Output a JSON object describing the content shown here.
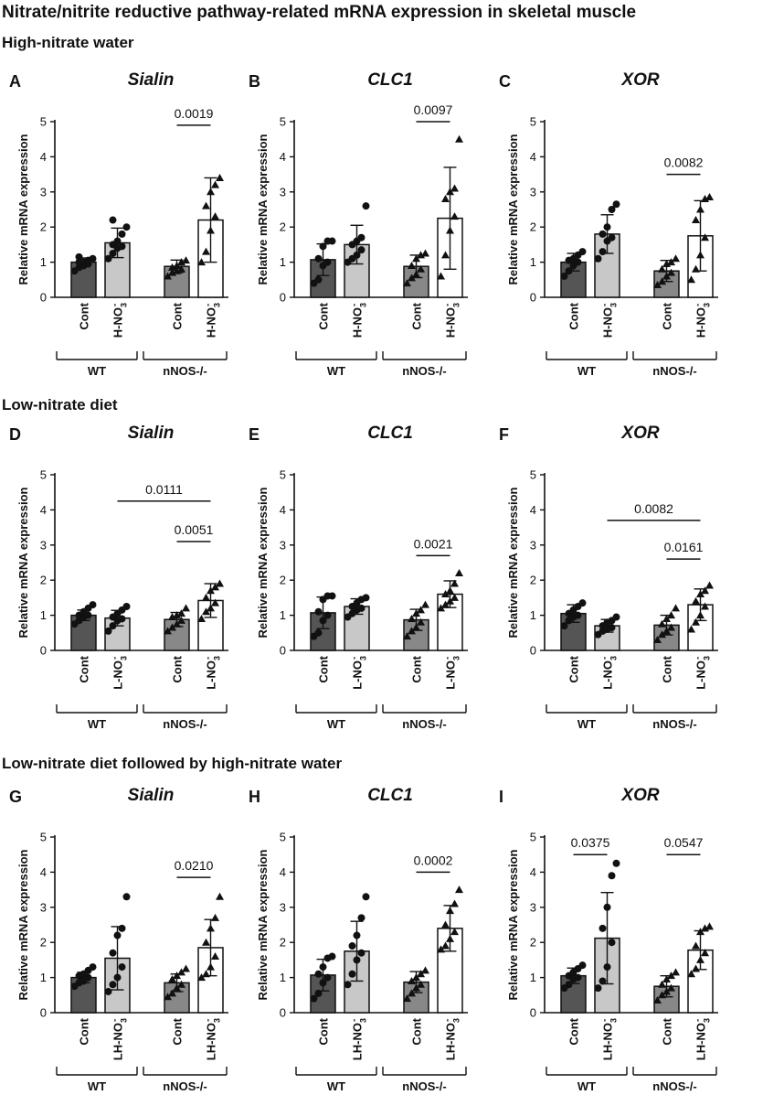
{
  "figure_title": "Nitrate/nitrite reductive pathway-related mRNA expression in skeletal muscle",
  "sections": [
    "High-nitrate water",
    "Low-nitrate diet",
    "Low-nitrate diet followed by high-nitrate water"
  ],
  "colors": {
    "cont": "#555555",
    "treat": "#c8c8c8",
    "ko_cont": "#888888",
    "ko_treat": "#ffffff",
    "ink": "#111111"
  },
  "chart_data": [
    {
      "type": "bar",
      "panel": "A",
      "gene": "Sialin",
      "section": 0,
      "ylabel": "Relative mRNA expression",
      "ylim": [
        0,
        5
      ],
      "yticks": [
        "0",
        "1",
        "2",
        "3",
        "4",
        "5"
      ],
      "categories": [
        "Cont",
        "H-NO3-"
      ],
      "cat_display": [
        {
          "main": "Cont"
        },
        {
          "main": "H-NO",
          "sub": "3",
          "sup": "-"
        }
      ],
      "groups": [
        "WT",
        "nNOS-/-"
      ],
      "series": [
        {
          "name": "WT Cont",
          "mean": 1.0,
          "sd": 0.12,
          "marker": "circle",
          "points": [
            0.75,
            0.85,
            0.9,
            0.95,
            1.0,
            1.0,
            1.05,
            1.1,
            1.15
          ]
        },
        {
          "name": "WT H-NO3-",
          "mean": 1.55,
          "sd": 0.42,
          "marker": "circle",
          "points": [
            1.1,
            1.25,
            1.4,
            1.45,
            1.5,
            1.6,
            1.8,
            2.0,
            2.2
          ]
        },
        {
          "name": "nNOS-/- Cont",
          "mean": 0.88,
          "sd": 0.18,
          "marker": "triangle",
          "points": [
            0.6,
            0.7,
            0.75,
            0.8,
            0.85,
            0.9,
            1.0,
            1.05
          ]
        },
        {
          "name": "nNOS-/- H-NO3-",
          "mean": 2.2,
          "sd": 1.2,
          "marker": "triangle",
          "points": [
            1.0,
            1.3,
            1.9,
            2.3,
            2.6,
            3.0,
            3.2,
            3.4
          ]
        }
      ],
      "comparisons": [
        {
          "from": 2,
          "to": 3,
          "label": "0.0019",
          "y": 4.9
        }
      ]
    },
    {
      "type": "bar",
      "panel": "B",
      "gene": "CLC1",
      "section": 0,
      "ylabel": "Relative mRNA expression",
      "ylim": [
        0,
        5
      ],
      "yticks": [
        "0",
        "1",
        "2",
        "3",
        "4",
        "5"
      ],
      "categories": [
        "Cont",
        "H-NO3-"
      ],
      "cat_display": [
        {
          "main": "Cont"
        },
        {
          "main": "H-NO",
          "sub": "3",
          "sup": "-"
        }
      ],
      "groups": [
        "WT",
        "nNOS-/-"
      ],
      "series": [
        {
          "name": "WT Cont",
          "mean": 1.07,
          "sd": 0.45,
          "marker": "circle",
          "points": [
            0.4,
            0.5,
            0.9,
            1.0,
            1.1,
            1.45,
            1.6,
            1.6
          ]
        },
        {
          "name": "WT H-NO3-",
          "mean": 1.5,
          "sd": 0.55,
          "marker": "circle",
          "points": [
            1.0,
            1.1,
            1.2,
            1.35,
            1.5,
            1.6,
            1.7,
            2.6
          ]
        },
        {
          "name": "nNOS-/- Cont",
          "mean": 0.88,
          "sd": 0.32,
          "marker": "triangle",
          "points": [
            0.4,
            0.55,
            0.65,
            0.8,
            0.9,
            1.1,
            1.2,
            1.25
          ]
        },
        {
          "name": "nNOS-/- H-NO3-",
          "mean": 2.25,
          "sd": 1.45,
          "marker": "triangle",
          "points": [
            0.6,
            1.2,
            1.9,
            2.3,
            2.8,
            3.0,
            3.1,
            4.5
          ]
        }
      ],
      "comparisons": [
        {
          "from": 2,
          "to": 3,
          "label": "0.0097",
          "y": 5.0
        }
      ]
    },
    {
      "type": "bar",
      "panel": "C",
      "gene": "XOR",
      "section": 0,
      "ylabel": "Relative mRNA expression",
      "ylim": [
        0,
        5
      ],
      "yticks": [
        "0",
        "1",
        "2",
        "3",
        "4",
        "5"
      ],
      "categories": [
        "Cont",
        "H-NO3-"
      ],
      "cat_display": [
        {
          "main": "Cont"
        },
        {
          "main": "H-NO",
          "sub": "3",
          "sup": "-"
        }
      ],
      "groups": [
        "WT",
        "nNOS-/-"
      ],
      "series": [
        {
          "name": "WT Cont",
          "mean": 1.0,
          "sd": 0.25,
          "marker": "circle",
          "points": [
            0.6,
            0.75,
            0.9,
            1.0,
            1.05,
            1.1,
            1.2,
            1.3
          ]
        },
        {
          "name": "WT H-NO3-",
          "mean": 1.8,
          "sd": 0.55,
          "marker": "circle",
          "points": [
            1.1,
            1.3,
            1.6,
            1.7,
            1.8,
            2.0,
            2.5,
            2.65
          ]
        },
        {
          "name": "nNOS-/- Cont",
          "mean": 0.75,
          "sd": 0.3,
          "marker": "triangle",
          "points": [
            0.35,
            0.45,
            0.6,
            0.7,
            0.8,
            0.95,
            1.0,
            1.1
          ]
        },
        {
          "name": "nNOS-/- H-NO3-",
          "mean": 1.75,
          "sd": 1.0,
          "marker": "triangle",
          "points": [
            0.5,
            0.8,
            1.2,
            1.7,
            2.2,
            2.5,
            2.8,
            2.85
          ]
        }
      ],
      "comparisons": [
        {
          "from": 2,
          "to": 3,
          "label": "0.0082",
          "y": 3.5
        }
      ]
    },
    {
      "type": "bar",
      "panel": "D",
      "gene": "Sialin",
      "section": 1,
      "ylabel": "Relative mRNA expression",
      "ylim": [
        0,
        5
      ],
      "yticks": [
        "0",
        "1",
        "2",
        "3",
        "4",
        "5"
      ],
      "categories": [
        "Cont",
        "L-NO3-"
      ],
      "cat_display": [
        {
          "main": "Cont"
        },
        {
          "main": "L-NO",
          "sub": "3",
          "sup": "-"
        }
      ],
      "groups": [
        "WT",
        "nNOS-/-"
      ],
      "series": [
        {
          "name": "WT Cont",
          "mean": 1.0,
          "sd": 0.15,
          "marker": "circle",
          "points": [
            0.75,
            0.85,
            0.95,
            1.0,
            1.0,
            1.1,
            1.2,
            1.3
          ]
        },
        {
          "name": "WT L-NO3-",
          "mean": 0.92,
          "sd": 0.22,
          "marker": "circle",
          "points": [
            0.55,
            0.7,
            0.85,
            0.9,
            0.95,
            1.05,
            1.15,
            1.25
          ]
        },
        {
          "name": "nNOS-/- Cont",
          "mean": 0.88,
          "sd": 0.2,
          "marker": "triangle",
          "points": [
            0.55,
            0.65,
            0.75,
            0.85,
            0.95,
            1.0,
            1.05,
            1.2
          ]
        },
        {
          "name": "nNOS-/- L-NO3-",
          "mean": 1.42,
          "sd": 0.48,
          "marker": "triangle",
          "points": [
            0.9,
            1.1,
            1.2,
            1.35,
            1.5,
            1.7,
            1.8,
            1.9
          ]
        }
      ],
      "comparisons": [
        {
          "from": 1,
          "to": 3,
          "label": "0.0111",
          "y": 4.25
        },
        {
          "from": 2,
          "to": 3,
          "label": "0.0051",
          "y": 3.1
        }
      ]
    },
    {
      "type": "bar",
      "panel": "E",
      "gene": "CLC1",
      "section": 1,
      "ylabel": "Relative mRNA expression",
      "ylim": [
        0,
        5
      ],
      "yticks": [
        "0",
        "1",
        "2",
        "3",
        "4",
        "5"
      ],
      "categories": [
        "Cont",
        "L-NO3-"
      ],
      "cat_display": [
        {
          "main": "Cont"
        },
        {
          "main": "L-NO",
          "sub": "3",
          "sup": "-"
        }
      ],
      "groups": [
        "WT",
        "nNOS-/-"
      ],
      "series": [
        {
          "name": "WT Cont",
          "mean": 1.07,
          "sd": 0.45,
          "marker": "circle",
          "points": [
            0.4,
            0.5,
            0.85,
            1.0,
            1.1,
            1.45,
            1.55,
            1.55
          ]
        },
        {
          "name": "WT L-NO3-",
          "mean": 1.25,
          "sd": 0.22,
          "marker": "circle",
          "points": [
            0.95,
            1.05,
            1.15,
            1.2,
            1.25,
            1.35,
            1.45,
            1.5
          ]
        },
        {
          "name": "nNOS-/- Cont",
          "mean": 0.87,
          "sd": 0.3,
          "marker": "triangle",
          "points": [
            0.4,
            0.55,
            0.65,
            0.8,
            0.9,
            1.05,
            1.15,
            1.3
          ]
        },
        {
          "name": "nNOS-/- L-NO3-",
          "mean": 1.6,
          "sd": 0.38,
          "marker": "triangle",
          "points": [
            1.2,
            1.3,
            1.4,
            1.5,
            1.6,
            1.7,
            1.9,
            2.2
          ]
        }
      ],
      "comparisons": [
        {
          "from": 2,
          "to": 3,
          "label": "0.0021",
          "y": 2.7
        }
      ]
    },
    {
      "type": "bar",
      "panel": "F",
      "gene": "XOR",
      "section": 1,
      "ylabel": "Relative mRNA expression",
      "ylim": [
        0,
        5
      ],
      "yticks": [
        "0",
        "1",
        "2",
        "3",
        "4",
        "5"
      ],
      "categories": [
        "Cont",
        "L-NO3-"
      ],
      "cat_display": [
        {
          "main": "Cont"
        },
        {
          "main": "L-NO",
          "sub": "3",
          "sup": "-"
        }
      ],
      "groups": [
        "WT",
        "nNOS-/-"
      ],
      "series": [
        {
          "name": "WT Cont",
          "mean": 1.05,
          "sd": 0.25,
          "marker": "circle",
          "points": [
            0.7,
            0.85,
            0.95,
            1.0,
            1.05,
            1.15,
            1.25,
            1.35
          ]
        },
        {
          "name": "WT L-NO3-",
          "mean": 0.7,
          "sd": 0.18,
          "marker": "circle",
          "points": [
            0.45,
            0.55,
            0.6,
            0.65,
            0.7,
            0.8,
            0.85,
            0.95
          ]
        },
        {
          "name": "nNOS-/- Cont",
          "mean": 0.72,
          "sd": 0.28,
          "marker": "triangle",
          "points": [
            0.3,
            0.45,
            0.55,
            0.65,
            0.75,
            0.9,
            1.0,
            1.2
          ]
        },
        {
          "name": "nNOS-/- L-NO3-",
          "mean": 1.3,
          "sd": 0.45,
          "marker": "triangle",
          "points": [
            0.6,
            0.8,
            1.0,
            1.25,
            1.4,
            1.6,
            1.7,
            1.85
          ]
        }
      ],
      "comparisons": [
        {
          "from": 1,
          "to": 3,
          "label": "0.0082",
          "y": 3.7
        },
        {
          "from": 2,
          "to": 3,
          "label": "0.0161",
          "y": 2.6
        }
      ]
    },
    {
      "type": "bar",
      "panel": "G",
      "gene": "Sialin",
      "section": 2,
      "ylabel": "Relative mRNA expression",
      "ylim": [
        0,
        5
      ],
      "yticks": [
        "0",
        "1",
        "2",
        "3",
        "4",
        "5"
      ],
      "categories": [
        "Cont",
        "LH-NO3-"
      ],
      "cat_display": [
        {
          "main": "Cont"
        },
        {
          "main": "LH-NO",
          "sub": "3",
          "sup": "-"
        }
      ],
      "groups": [
        "WT",
        "nNOS-/-"
      ],
      "series": [
        {
          "name": "WT Cont",
          "mean": 1.0,
          "sd": 0.15,
          "marker": "circle",
          "points": [
            0.75,
            0.85,
            0.9,
            1.0,
            1.05,
            1.1,
            1.2,
            1.3
          ]
        },
        {
          "name": "WT LH-NO3-",
          "mean": 1.55,
          "sd": 0.9,
          "marker": "circle",
          "points": [
            0.6,
            0.8,
            1.0,
            1.3,
            1.7,
            2.2,
            2.4,
            3.3
          ]
        },
        {
          "name": "nNOS-/- Cont",
          "mean": 0.85,
          "sd": 0.25,
          "marker": "triangle",
          "points": [
            0.45,
            0.55,
            0.7,
            0.8,
            0.95,
            1.05,
            1.15,
            1.25
          ]
        },
        {
          "name": "nNOS-/- LH-NO3-",
          "mean": 1.85,
          "sd": 0.8,
          "marker": "triangle",
          "points": [
            1.0,
            1.1,
            1.3,
            1.6,
            2.0,
            2.4,
            2.7,
            3.3
          ]
        }
      ],
      "comparisons": [
        {
          "from": 2,
          "to": 3,
          "label": "0.0210",
          "y": 3.85
        }
      ]
    },
    {
      "type": "bar",
      "panel": "H",
      "gene": "CLC1",
      "section": 2,
      "ylabel": "Relative mRNA expression",
      "ylim": [
        0,
        5
      ],
      "yticks": [
        "0",
        "1",
        "2",
        "3",
        "4",
        "5"
      ],
      "categories": [
        "Cont",
        "LH-NO3-"
      ],
      "cat_display": [
        {
          "main": "Cont"
        },
        {
          "main": "LH-NO",
          "sub": "3",
          "sup": "-"
        }
      ],
      "groups": [
        "WT",
        "nNOS-/-"
      ],
      "series": [
        {
          "name": "WT Cont",
          "mean": 1.07,
          "sd": 0.45,
          "marker": "circle",
          "points": [
            0.4,
            0.55,
            0.85,
            1.0,
            1.1,
            1.3,
            1.55,
            1.6
          ]
        },
        {
          "name": "WT LH-NO3-",
          "mean": 1.75,
          "sd": 0.85,
          "marker": "circle",
          "points": [
            0.8,
            1.1,
            1.5,
            1.7,
            1.9,
            2.2,
            2.7,
            3.3
          ]
        },
        {
          "name": "nNOS-/- Cont",
          "mean": 0.87,
          "sd": 0.3,
          "marker": "triangle",
          "points": [
            0.4,
            0.55,
            0.7,
            0.8,
            0.9,
            1.0,
            1.1,
            1.2
          ]
        },
        {
          "name": "nNOS-/- LH-NO3-",
          "mean": 2.4,
          "sd": 0.65,
          "marker": "triangle",
          "points": [
            1.8,
            1.9,
            2.1,
            2.3,
            2.5,
            2.9,
            3.1,
            3.5
          ]
        }
      ],
      "comparisons": [
        {
          "from": 2,
          "to": 3,
          "label": "0.0002",
          "y": 4.0
        }
      ]
    },
    {
      "type": "bar",
      "panel": "I",
      "gene": "XOR",
      "section": 2,
      "ylabel": "Relative mRNA expression",
      "ylim": [
        0,
        5
      ],
      "yticks": [
        "0",
        "1",
        "2",
        "3",
        "4",
        "5"
      ],
      "categories": [
        "Cont",
        "LH-NO3-"
      ],
      "cat_display": [
        {
          "main": "Cont"
        },
        {
          "main": "LH-NO",
          "sub": "3",
          "sup": "-"
        }
      ],
      "groups": [
        "WT",
        "nNOS-/-"
      ],
      "series": [
        {
          "name": "WT Cont",
          "mean": 1.05,
          "sd": 0.22,
          "marker": "circle",
          "points": [
            0.7,
            0.8,
            0.95,
            1.0,
            1.05,
            1.15,
            1.25,
            1.35
          ]
        },
        {
          "name": "WT LH-NO3-",
          "mean": 2.12,
          "sd": 1.3,
          "marker": "circle",
          "points": [
            0.7,
            0.9,
            1.3,
            2.0,
            2.4,
            3.0,
            3.9,
            4.25
          ]
        },
        {
          "name": "nNOS-/- Cont",
          "mean": 0.75,
          "sd": 0.3,
          "marker": "triangle",
          "points": [
            0.35,
            0.5,
            0.6,
            0.7,
            0.8,
            0.95,
            1.05,
            1.15
          ]
        },
        {
          "name": "nNOS-/- LH-NO3-",
          "mean": 1.78,
          "sd": 0.55,
          "marker": "triangle",
          "points": [
            1.1,
            1.25,
            1.5,
            1.7,
            1.9,
            2.3,
            2.4,
            2.45
          ]
        }
      ],
      "comparisons": [
        {
          "from": 0,
          "to": 1,
          "label": "0.0375",
          "y": 4.5
        },
        {
          "from": 2,
          "to": 3,
          "label": "0.0547",
          "y": 4.5
        }
      ]
    }
  ]
}
